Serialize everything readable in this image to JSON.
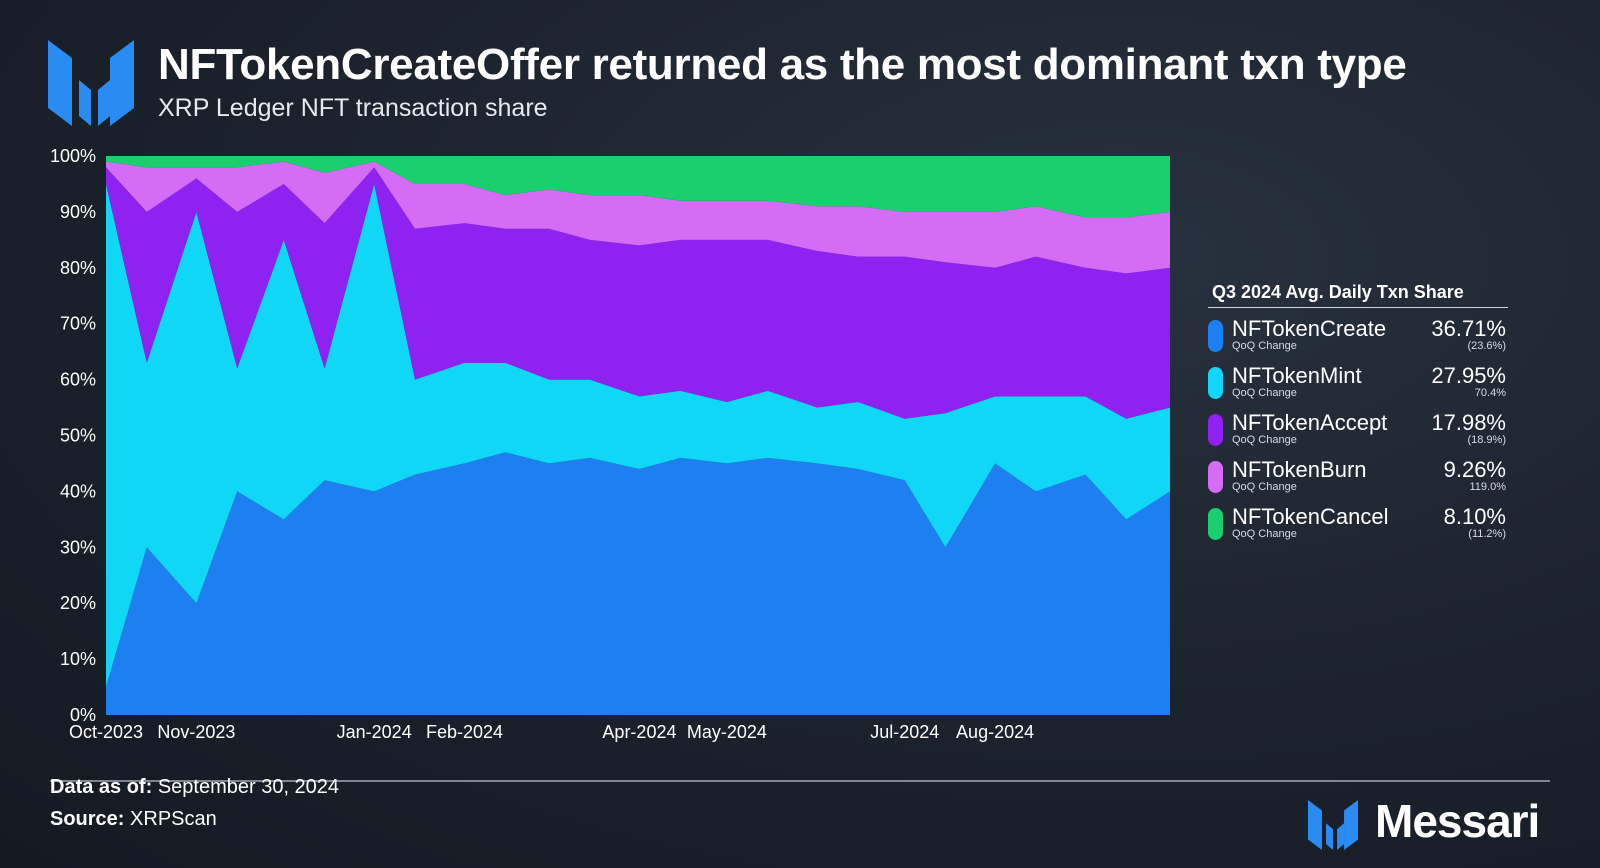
{
  "header": {
    "title": "NFTokenCreateOffer returned as the most dominant txn type",
    "subtitle": "XRP Ledger NFT transaction share"
  },
  "legend": {
    "title": "Q3 2024 Avg. Daily Txn Share",
    "sub_label": "QoQ Change",
    "items": [
      {
        "name": "NFTokenCreate",
        "value": "36.71%",
        "change": "(23.6%)",
        "color": "#1e7ff0"
      },
      {
        "name": "NFTokenMint",
        "value": "27.95%",
        "change": "70.4%",
        "color": "#11d7f6"
      },
      {
        "name": "NFTokenAccept",
        "value": "17.98%",
        "change": "(18.9%)",
        "color": "#8f22f0"
      },
      {
        "name": "NFTokenBurn",
        "value": "9.26%",
        "change": "119.0%",
        "color": "#d46cf5"
      },
      {
        "name": "NFTokenCancel",
        "value": "8.10%",
        "change": "(11.2%)",
        "color": "#19cf6e"
      }
    ]
  },
  "footer": {
    "data_as_of_label": "Data as of:",
    "data_as_of_value": "September 30, 2024",
    "source_label": "Source:",
    "source_value": "XRPScan",
    "brand": "Messari"
  },
  "chart_data": {
    "type": "area",
    "stacked": true,
    "normalized": true,
    "x": [
      "2023-10-01",
      "2023-10-15",
      "2023-11-01",
      "2023-11-15",
      "2023-12-01",
      "2023-12-15",
      "2024-01-01",
      "2024-01-15",
      "2024-02-01",
      "2024-02-15",
      "2024-03-01",
      "2024-03-15",
      "2024-04-01",
      "2024-04-15",
      "2024-05-01",
      "2024-05-15",
      "2024-06-01",
      "2024-06-15",
      "2024-07-01",
      "2024-07-15",
      "2024-08-01",
      "2024-08-15",
      "2024-09-01",
      "2024-09-15",
      "2024-09-30"
    ],
    "series": [
      {
        "name": "NFTokenCreate",
        "values": [
          5,
          30,
          20,
          40,
          35,
          42,
          40,
          43,
          45,
          47,
          45,
          46,
          44,
          46,
          45,
          46,
          45,
          44,
          42,
          30,
          45,
          40,
          43,
          35,
          40
        ]
      },
      {
        "name": "NFTokenMint",
        "values": [
          90,
          33,
          70,
          22,
          50,
          20,
          55,
          17,
          18,
          16,
          15,
          14,
          13,
          12,
          11,
          12,
          10,
          12,
          11,
          24,
          12,
          17,
          14,
          18,
          15
        ]
      },
      {
        "name": "NFTokenAccept",
        "values": [
          3,
          27,
          6,
          28,
          10,
          26,
          3,
          27,
          25,
          24,
          27,
          25,
          27,
          27,
          29,
          27,
          28,
          26,
          29,
          27,
          23,
          25,
          23,
          26,
          25
        ]
      },
      {
        "name": "NFTokenBurn",
        "values": [
          1,
          8,
          2,
          8,
          4,
          9,
          1,
          8,
          7,
          6,
          7,
          8,
          9,
          7,
          7,
          7,
          8,
          9,
          8,
          9,
          10,
          9,
          9,
          10,
          10
        ]
      },
      {
        "name": "NFTokenCancel",
        "values": [
          1,
          2,
          2,
          2,
          1,
          3,
          1,
          5,
          5,
          7,
          6,
          7,
          7,
          8,
          8,
          8,
          9,
          9,
          10,
          10,
          10,
          9,
          11,
          11,
          10
        ]
      }
    ],
    "y_ticks": [
      "0%",
      "10%",
      "20%",
      "30%",
      "40%",
      "50%",
      "60%",
      "70%",
      "80%",
      "90%",
      "100%"
    ],
    "ylim": [
      0,
      100
    ],
    "x_ticks": [
      {
        "date": "2023-10-01",
        "label": "Oct-2023"
      },
      {
        "date": "2023-11-01",
        "label": "Nov-2023"
      },
      {
        "date": "2024-01-01",
        "label": "Jan-2024"
      },
      {
        "date": "2024-02-01",
        "label": "Feb-2024"
      },
      {
        "date": "2024-04-01",
        "label": "Apr-2024"
      },
      {
        "date": "2024-05-01",
        "label": "May-2024"
      },
      {
        "date": "2024-07-01",
        "label": "Jul-2024"
      },
      {
        "date": "2024-08-01",
        "label": "Aug-2024"
      }
    ],
    "x_range": [
      "2023-10-01",
      "2024-09-30"
    ],
    "grid": false,
    "legend_position": "right"
  }
}
